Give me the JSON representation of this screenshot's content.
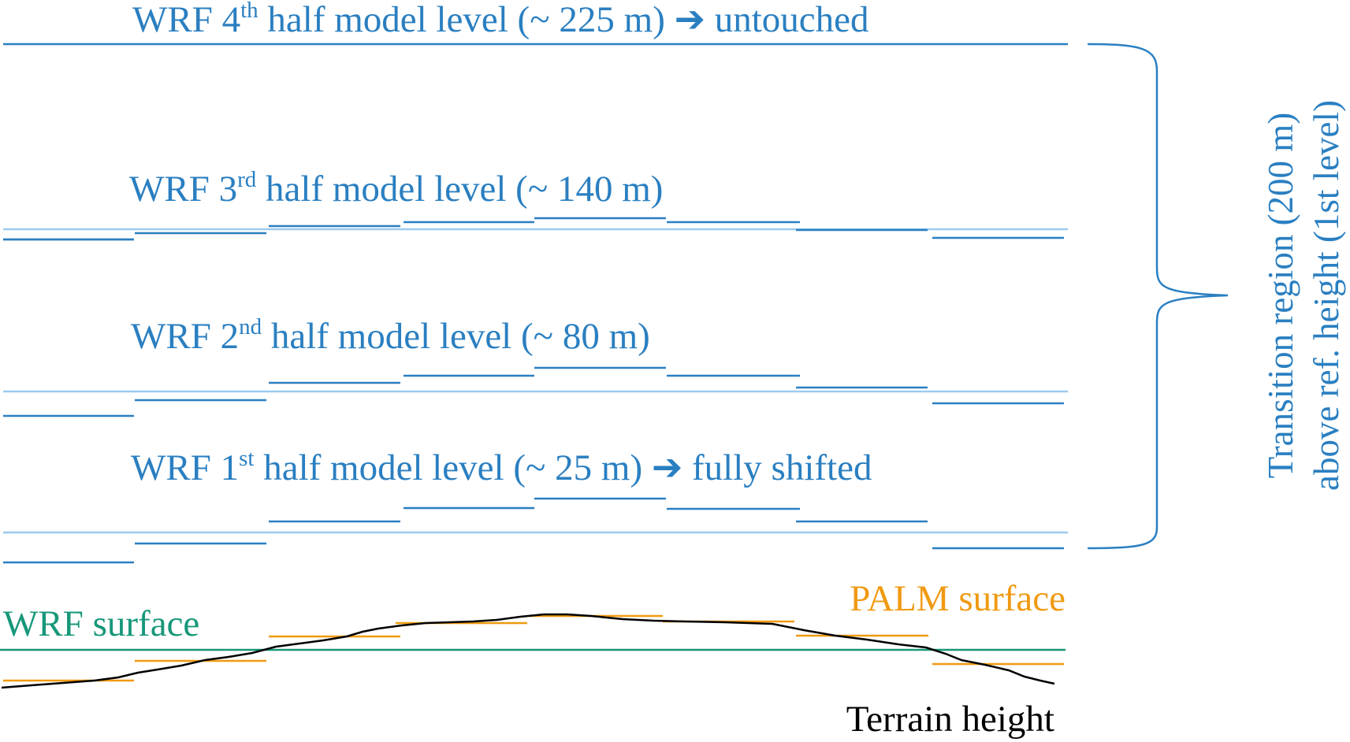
{
  "colors": {
    "wrf_level_dark": "#2a7fc1",
    "wrf_level_light": "#9ccbee",
    "wrf_surface": "#17977a",
    "palm_surface": "#f09a12",
    "terrain": "#000000"
  },
  "levels": [
    {
      "prefix": "WRF 4",
      "sup": "th",
      "suffix": " half model level (~ 225 m) ",
      "arrow": "➔",
      "note": " untouched"
    },
    {
      "prefix": "WRF 3",
      "sup": "rd",
      "suffix": " half model level (~ 140 m)",
      "arrow": "",
      "note": ""
    },
    {
      "prefix": "WRF 2",
      "sup": "nd",
      "suffix": " half model level (~ 80 m)",
      "arrow": "",
      "note": ""
    },
    {
      "prefix": "WRF 1",
      "sup": "st",
      "suffix": " half model level (~ 25 m) ",
      "arrow": "➔",
      "note": " fully shifted"
    }
  ],
  "labels": {
    "wrf_surface": "WRF surface",
    "palm_surface": "PALM surface",
    "terrain": "Terrain height",
    "transition_line1": "Transition region (200 m)",
    "transition_line2": "above ref. height (1st level)"
  }
}
